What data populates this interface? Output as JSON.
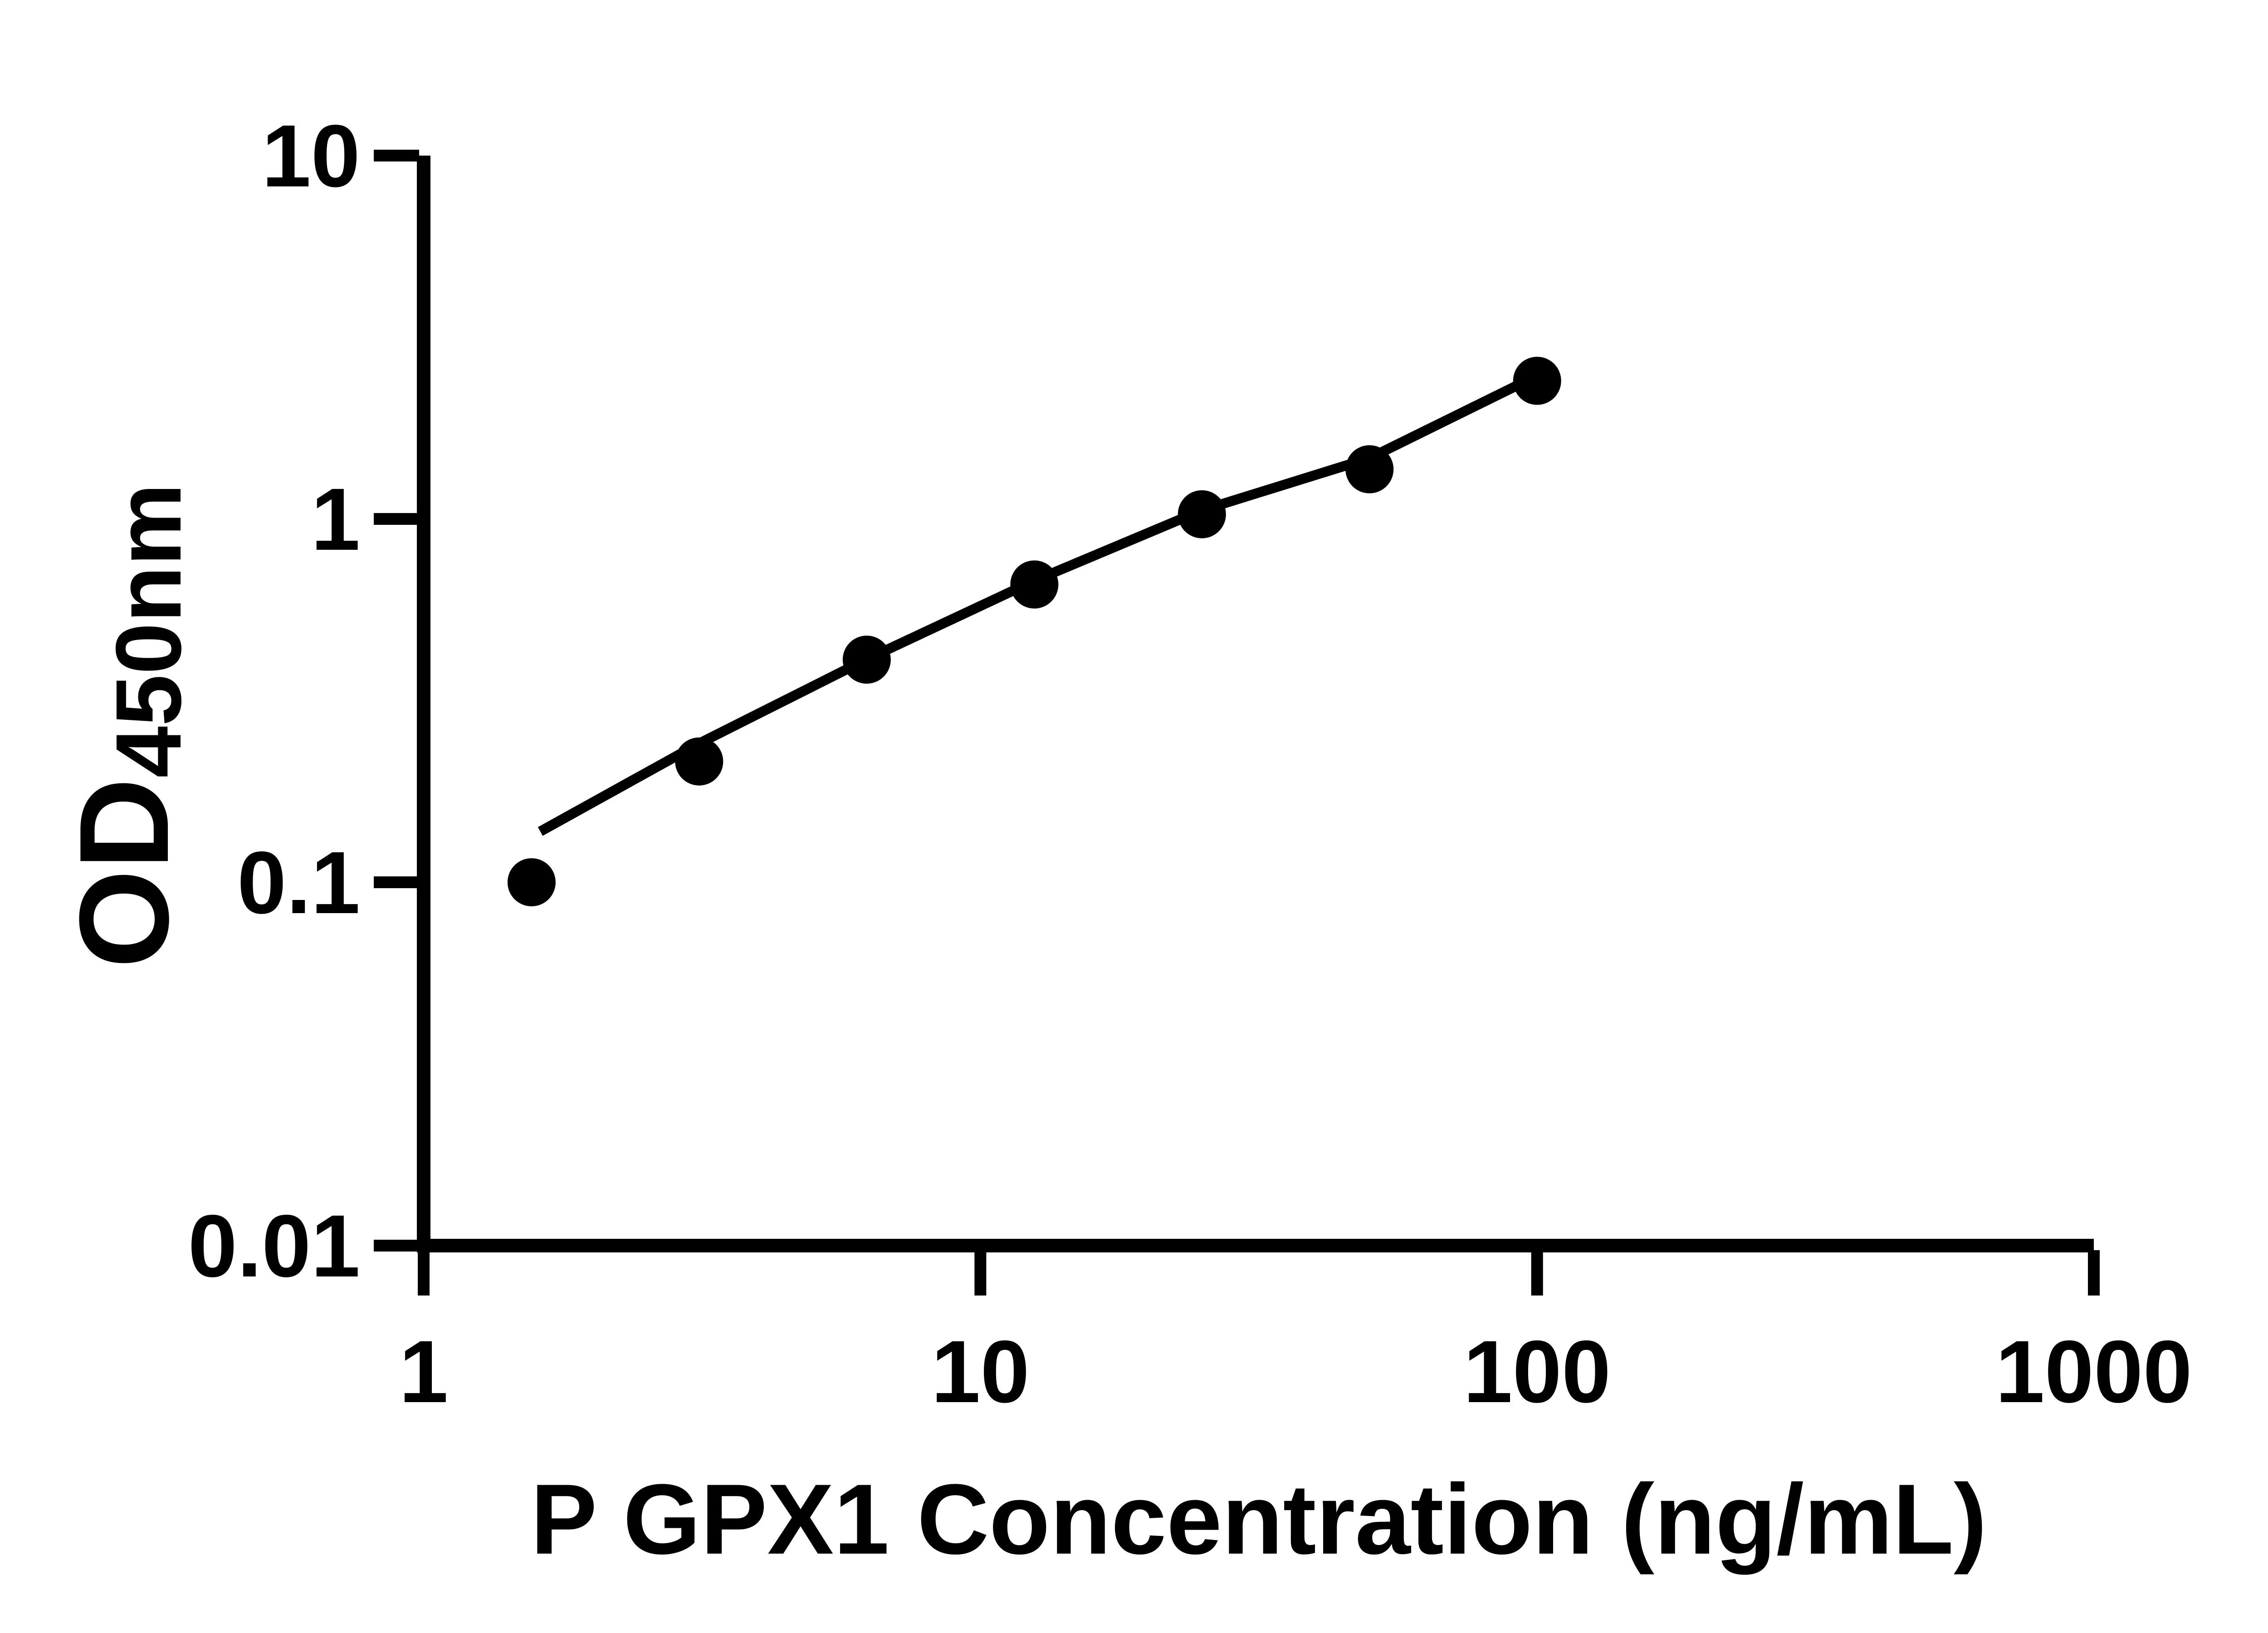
{
  "figure": {
    "background_color": "#ffffff",
    "ink_color": "#000000"
  },
  "chart_data": {
    "type": "scatter",
    "title": "",
    "xlabel": "P GPX1 Concentration (ng/mL)",
    "ylabel_main": "OD",
    "ylabel_sub": "450nm",
    "ylabel_full": "OD450nm",
    "x_scale": "log",
    "y_scale": "log",
    "xlim": [
      1,
      1000
    ],
    "ylim": [
      0.01,
      10
    ],
    "x_ticks": [
      1,
      10,
      100,
      1000
    ],
    "x_tick_labels": [
      "1",
      "10",
      "100",
      "1000"
    ],
    "y_ticks": [
      10,
      1,
      0.1,
      0.01
    ],
    "y_tick_labels": [
      "10",
      "1",
      "0.1",
      "0.01"
    ],
    "grid": false,
    "legend": null,
    "marker": "filled-circle",
    "series": [
      {
        "name": "standard-points",
        "kind": "scatter",
        "color": "#000000",
        "points": [
          {
            "x": 1.5625,
            "y": 0.1
          },
          {
            "x": 3.125,
            "y": 0.215
          },
          {
            "x": 6.25,
            "y": 0.41
          },
          {
            "x": 12.5,
            "y": 0.66
          },
          {
            "x": 25,
            "y": 1.03
          },
          {
            "x": 50,
            "y": 1.37
          },
          {
            "x": 100,
            "y": 2.4
          }
        ]
      },
      {
        "name": "fit-line",
        "kind": "line",
        "color": "#000000",
        "points": [
          {
            "x": 1.62,
            "y": 0.138
          },
          {
            "x": 3.125,
            "y": 0.241
          },
          {
            "x": 6.25,
            "y": 0.411
          },
          {
            "x": 12.5,
            "y": 0.676
          },
          {
            "x": 25,
            "y": 1.056
          },
          {
            "x": 50,
            "y": 1.47
          },
          {
            "x": 100,
            "y": 2.48
          }
        ]
      }
    ]
  }
}
